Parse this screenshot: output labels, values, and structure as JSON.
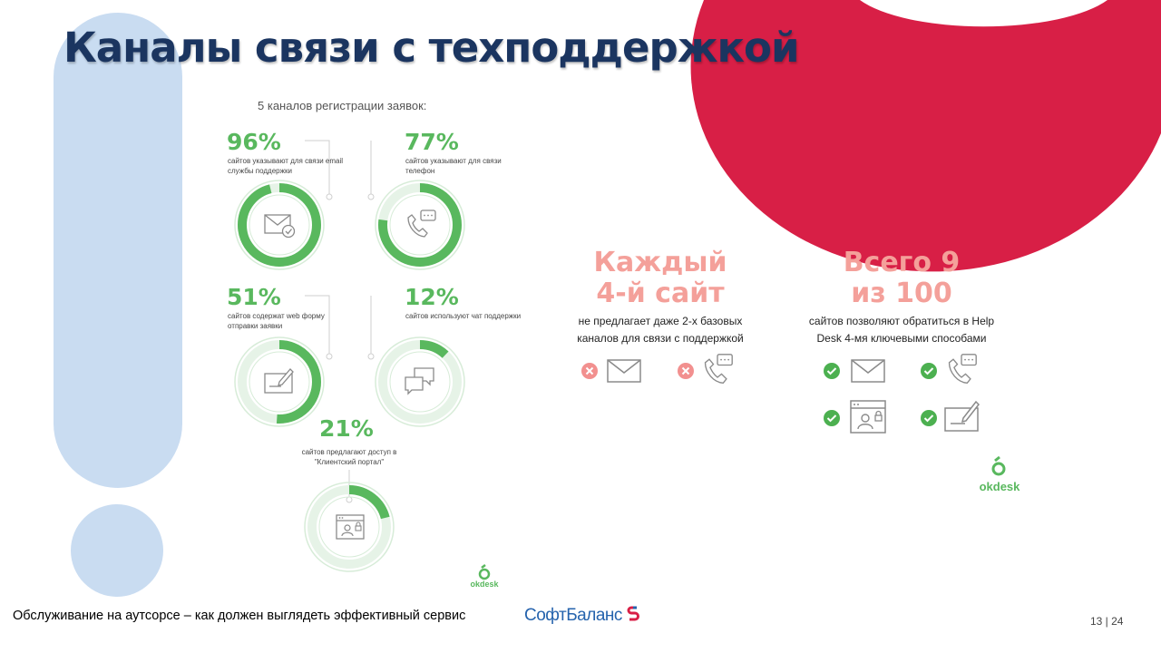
{
  "title": "Каналы связи с техподдержкой",
  "subtitle": "5 каналов регистрации заявок:",
  "channels": [
    {
      "percent": "96%",
      "caption": "сайтов указывают для связи email службы поддержки",
      "value": 96,
      "icon": "envelope-check-icon"
    },
    {
      "percent": "77%",
      "caption": "сайтов указывают для связи телефон",
      "value": 77,
      "icon": "phone-chat-icon"
    },
    {
      "percent": "51%",
      "caption": "сайтов содержат web форму отправки заявки",
      "value": 51,
      "icon": "web-form-icon"
    },
    {
      "percent": "12%",
      "caption": "сайтов используют чат поддержки",
      "value": 12,
      "icon": "chat-bubbles-icon"
    },
    {
      "percent": "21%",
      "caption": "сайтов предлагают доступ в \"Клиентский портал\"",
      "value": 21,
      "icon": "client-portal-icon"
    }
  ],
  "stats": [
    {
      "headline_1": "Каждый",
      "headline_2": "4-й сайт",
      "line_1": "не предлагает даже 2-х базовых",
      "line_2": "каналов для связи с поддержкой"
    },
    {
      "headline_1": "Всего 9",
      "headline_2": "из 100",
      "line_1": "сайтов позволяют обратиться в Help",
      "line_2": "Desk 4-мя ключевыми способами"
    }
  ],
  "logo_text": "okdesk",
  "footer": {
    "text": "Обслуживание на аутсорсе – как должен выглядеть эффективный сервис",
    "brand": "СофтБаланс",
    "page": "13 | 24"
  },
  "colors": {
    "green": "#59b85e",
    "title": "#1b3560",
    "salmon": "#f4a09a",
    "red": "#d81f46",
    "light_blue": "#c9dcf1"
  }
}
